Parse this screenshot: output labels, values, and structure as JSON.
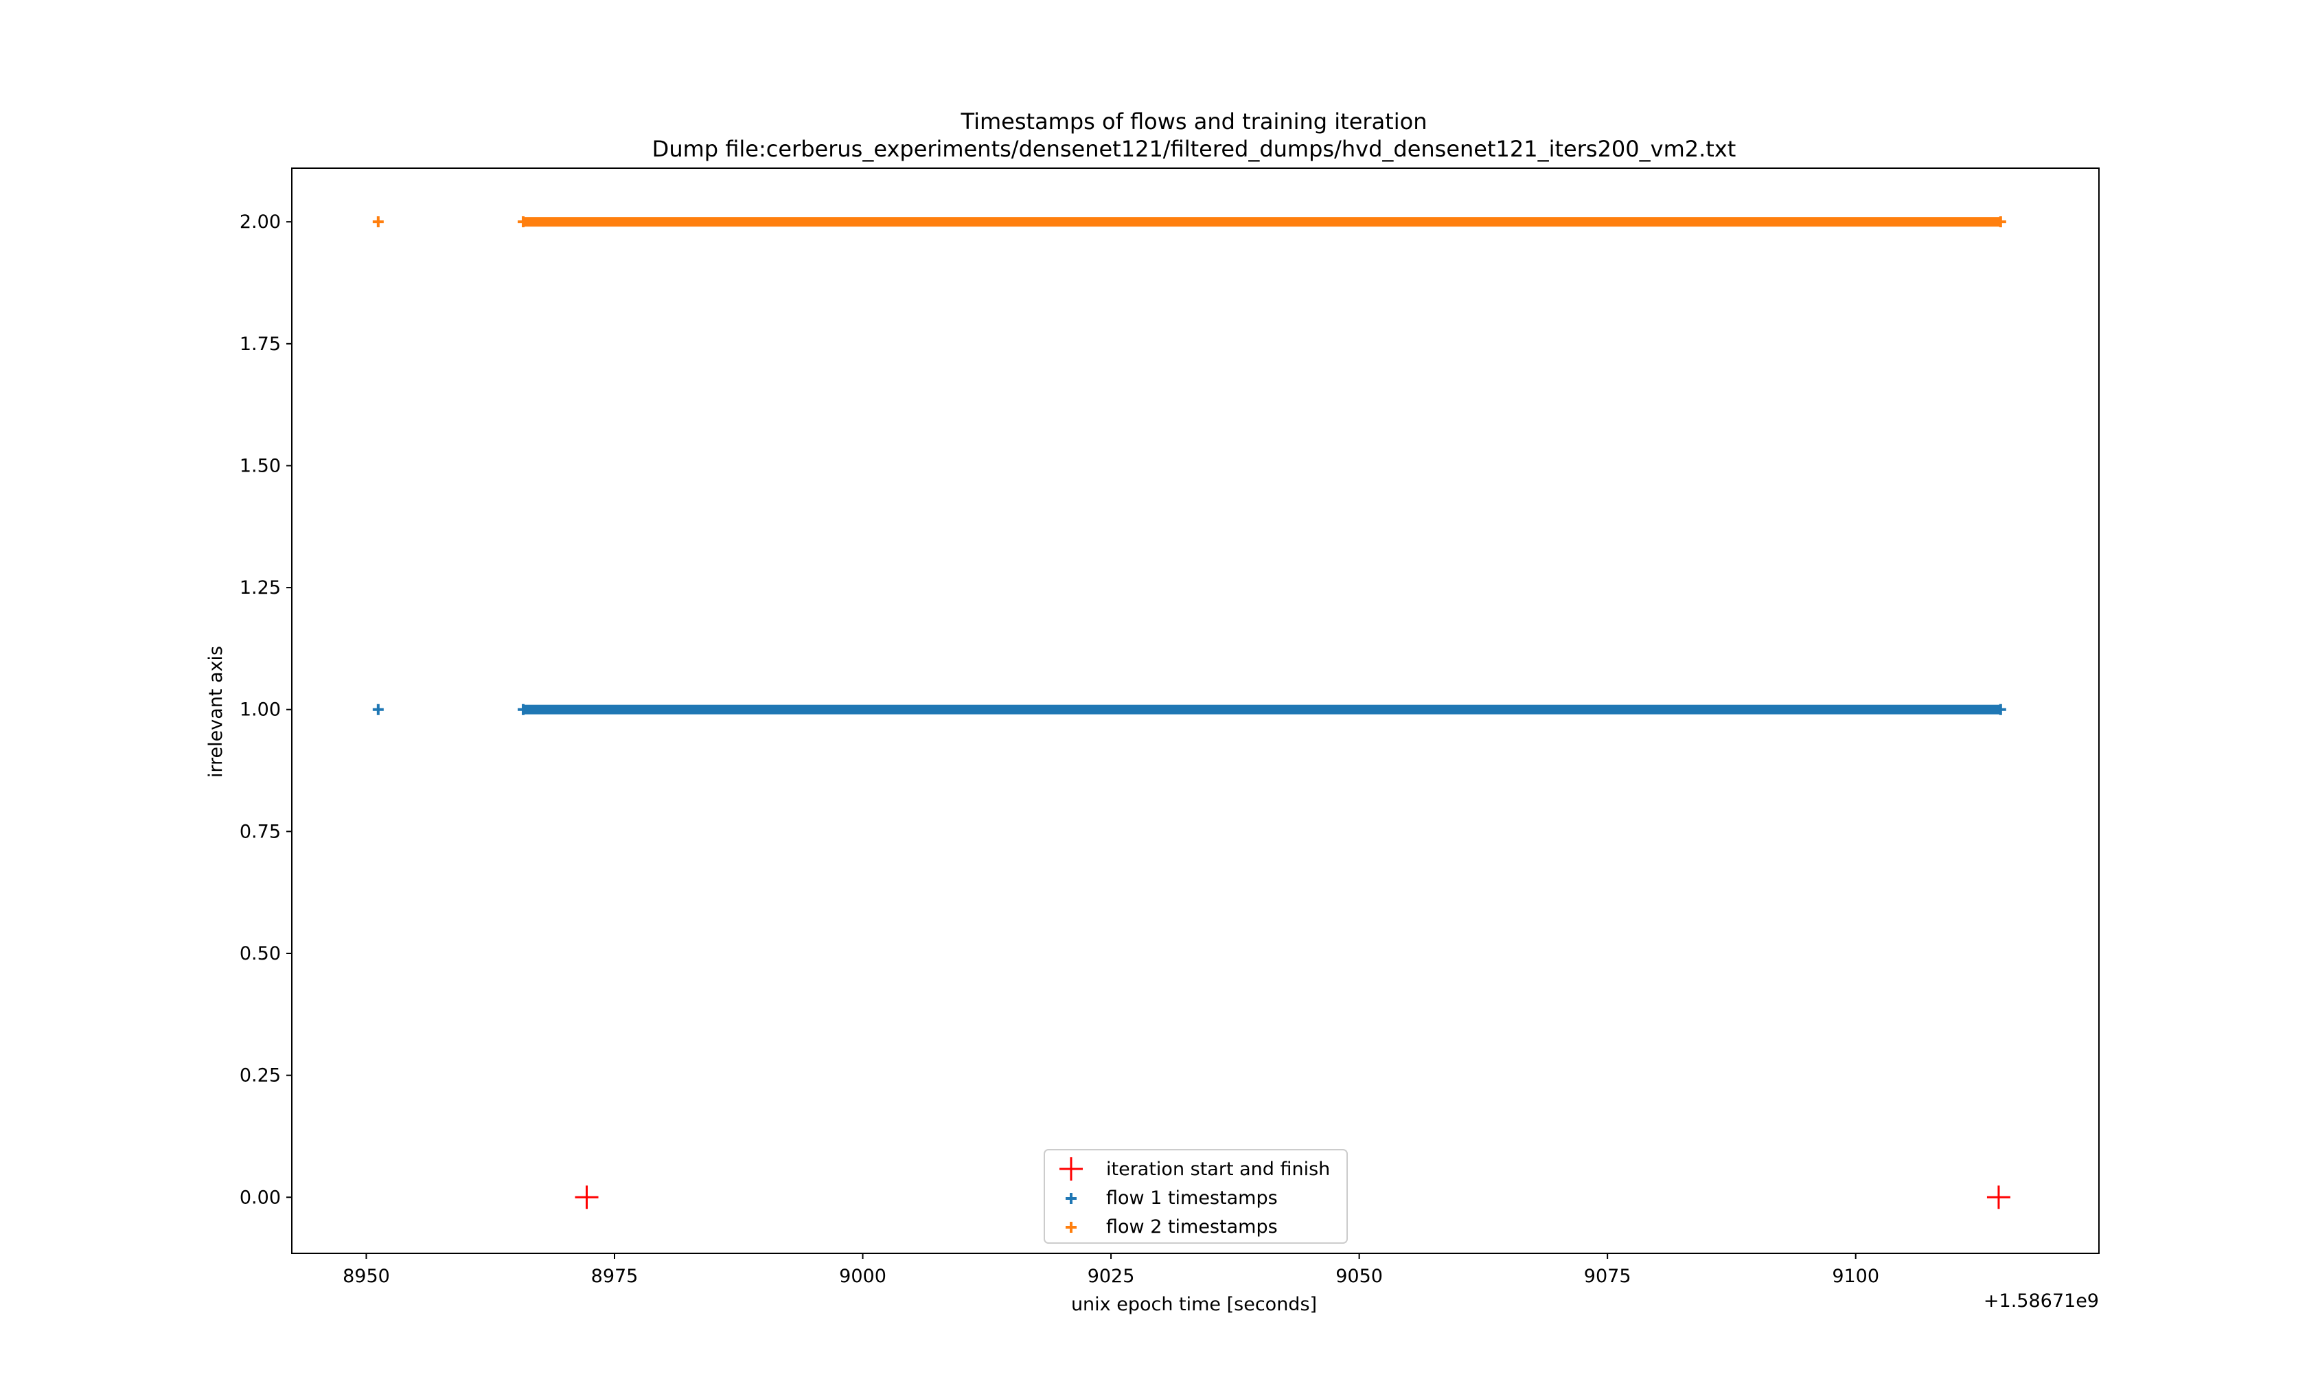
{
  "chart_data": {
    "type": "scatter",
    "title": "Timestamps of flows and training iteration",
    "subtitle": "Dump file:cerberus_experiments/densenet121/filtered_dumps/hvd_densenet121_iters200_vm2.txt",
    "xlabel": "unix epoch time [seconds]",
    "ylabel": "irrelevant axis",
    "x_offset_label": "+1.58671e9",
    "xlim": [
      8942.5,
      9124.5
    ],
    "ylim": [
      -0.115,
      2.11
    ],
    "xticks": [
      8950,
      8975,
      9000,
      9025,
      9050,
      9075,
      9100
    ],
    "xtick_labels": [
      "8950",
      "8975",
      "9000",
      "9025",
      "9050",
      "9075",
      "9100"
    ],
    "yticks": [
      0.0,
      0.25,
      0.5,
      0.75,
      1.0,
      1.25,
      1.5,
      1.75,
      2.0
    ],
    "ytick_labels": [
      "0.00",
      "0.25",
      "0.50",
      "0.75",
      "1.00",
      "1.25",
      "1.50",
      "1.75",
      "2.00"
    ],
    "legend_position": "bottom-center",
    "series": [
      {
        "name": "iteration start and finish",
        "color": "#ff0000",
        "marker": "large-plus",
        "points": [
          [
            8972.2,
            0.0
          ],
          [
            9114.4,
            0.0
          ]
        ]
      },
      {
        "name": "flow 1 timestamps",
        "color": "#1f77b4",
        "marker": "small-plus",
        "points": [
          [
            8951.2,
            1.0
          ]
        ],
        "dense_run": {
          "x_start": 8965.8,
          "x_end": 9114.6,
          "y": 1.0
        }
      },
      {
        "name": "flow 2 timestamps",
        "color": "#ff7f0e",
        "marker": "small-plus",
        "points": [
          [
            8951.2,
            2.0
          ]
        ],
        "dense_run": {
          "x_start": 8965.8,
          "x_end": 9114.6,
          "y": 2.0
        }
      }
    ]
  }
}
